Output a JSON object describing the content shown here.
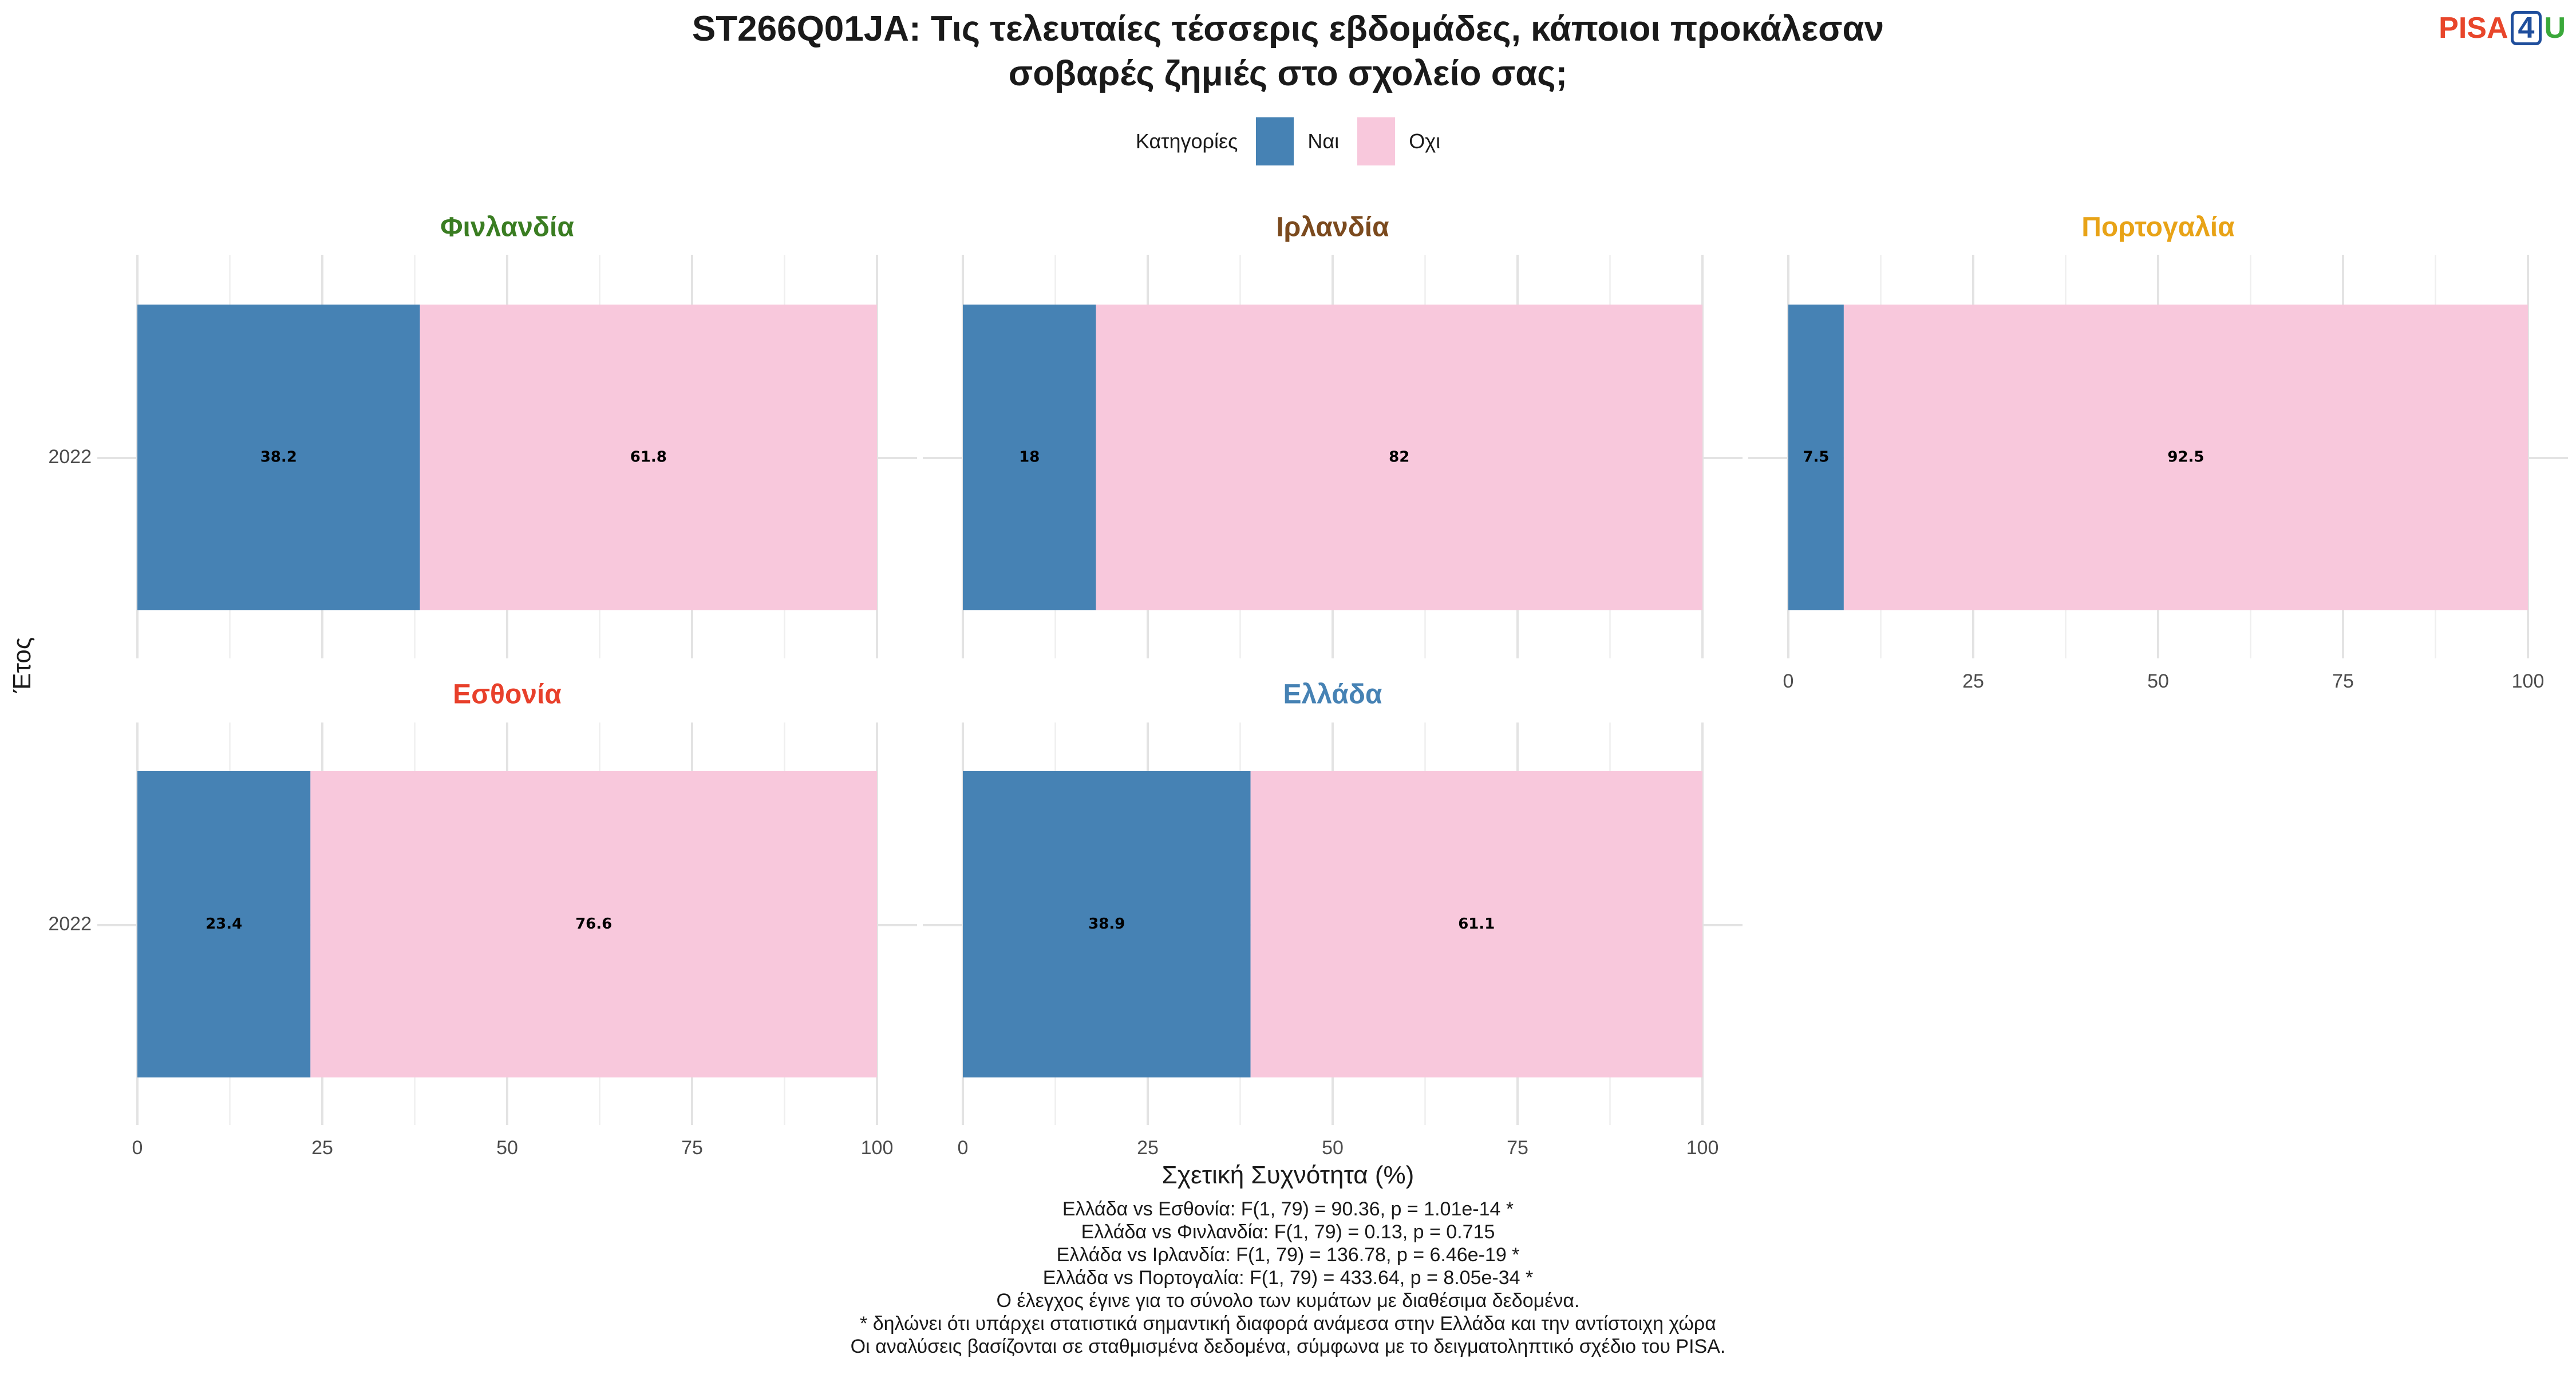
{
  "title_lines": [
    "ST266Q01JA: Τις τελευταίες τέσσερις εβδομάδες, κάποιοι προκάλεσαν",
    "σοβαρές ζημιές στο σχολείο σας;"
  ],
  "logo": {
    "pisa": "PISA",
    "four": "4",
    "u": "U"
  },
  "legend": {
    "title": "Κατηγορίες",
    "items": [
      {
        "label": "Ναι",
        "color": "#4682b4"
      },
      {
        "label": "Οχι",
        "color": "#f8c8dc"
      }
    ]
  },
  "chart_data": {
    "type": "bar",
    "orientation": "horizontal",
    "stacked": true,
    "xlabel": "Σχετική Συχνότητα (%)",
    "ylabel": "Έτος",
    "xlim": [
      0,
      100
    ],
    "xticks": [
      0,
      25,
      50,
      75,
      100
    ],
    "categories": [
      "2022"
    ],
    "series_names": [
      "Ναι",
      "Οχι"
    ],
    "series_colors": [
      "#4682b4",
      "#f8c8dc"
    ],
    "grid": true,
    "legend_position": "top",
    "panels": [
      {
        "name": "Φινλανδία",
        "color": "#3a7d22",
        "values": [
          38.2,
          61.8
        ],
        "labels": [
          "38.2",
          "61.8"
        ]
      },
      {
        "name": "Ιρλανδία",
        "color": "#7b4a1e",
        "values": [
          18,
          82
        ],
        "labels": [
          "18",
          "82"
        ]
      },
      {
        "name": "Πορτογαλία",
        "color": "#e8a317",
        "values": [
          7.5,
          92.5
        ],
        "labels": [
          "7.5",
          "92.5"
        ]
      },
      {
        "name": "Εσθονία",
        "color": "#e8402b",
        "values": [
          23.4,
          76.6
        ],
        "labels": [
          "23.4",
          "76.6"
        ]
      },
      {
        "name": "Ελλάδα",
        "color": "#4682b4",
        "values": [
          38.9,
          61.1
        ],
        "labels": [
          "38.9",
          "61.1"
        ]
      }
    ]
  },
  "notes": [
    "Ελλάδα vs Εσθονία: F(1, 79) = 90.36, p = 1.01e-14 *",
    "Ελλάδα vs Φινλανδία: F(1, 79) = 0.13, p = 0.715",
    "Ελλάδα vs Ιρλανδία: F(1, 79) = 136.78, p = 6.46e-19 *",
    "Ελλάδα vs Πορτογαλία: F(1, 79) = 433.64, p = 8.05e-34 *",
    "Ο έλεγχος έγινε για το σύνολο των κυμάτων με διαθέσιμα δεδομένα.",
    "* δηλώνει ότι υπάρχει στατιστικά σημαντική διαφορά ανάμεσα στην Ελλάδα και την αντίστοιχη χώρα",
    "Οι αναλύσεις βασίζονται σε σταθμισμένα δεδομένα, σύμφωνα με το δειγματοληπτικό σχέδιο του PISA."
  ]
}
